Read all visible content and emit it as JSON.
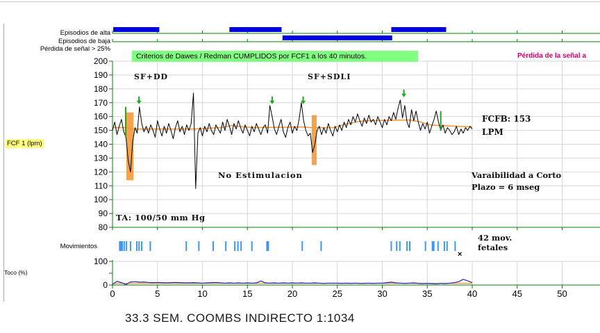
{
  "caption": "33.3 SEM. COOMBS INDIRECTO 1:1034",
  "header": {
    "rows": [
      {
        "label": "Episodios de alta",
        "bars_min": [
          [
            0.08,
            5.2
          ],
          [
            13.0,
            18.8
          ],
          [
            31.0,
            37.1
          ]
        ]
      },
      {
        "label": "Episodios de baja",
        "bars_min": [
          [
            18.9,
            31.1
          ]
        ]
      },
      {
        "label": "Pérdida de señal > 25%",
        "bars_min": []
      }
    ],
    "banner": "Criterios de Dawes / Redman CUMPLIDOS por FCF1 a los 40 minutos.",
    "signal_loss_text": "Pérdida de la señal a"
  },
  "axis_labels": {
    "fcf": "FCF 1 (lpm)",
    "movements": "Movimientos",
    "toco": "Toco (%)"
  },
  "annotations": {
    "sf_dd": "SF+DD",
    "sf_sdli": "SF+SDLI",
    "no_estimulacion": "No Estimulacion",
    "ta": "TA: 100/50 mm Hg",
    "fcfb_line1": "FCFB: 153",
    "fcfb_line2": "LPM",
    "stv_line1": "Varaibilidad a Corto",
    "stv_line2": "Plazo = 6 mseg",
    "mov_line1": "42 mov.",
    "mov_line2": "fetales",
    "x_marker": "×"
  },
  "colors": {
    "axis_green": "#008000",
    "grid": "#d6d6d6",
    "bar_blue": "#0000e0",
    "mov_blue": "#3d97f5",
    "banner_bg": "#80ff80",
    "magenta": "#d40070",
    "orange": "#f29a3a",
    "trace_black": "#000000",
    "toco_blue": "#2222cc",
    "marker_green": "#1fa81f",
    "yellow_bg": "#ffff80"
  },
  "chart_data": [
    {
      "id": "fhr",
      "type": "line",
      "title": "FCF 1 (lpm)",
      "ylabel": "FCF 1 (lpm)",
      "ylim": [
        80,
        200
      ],
      "y_ticks": [
        80,
        90,
        100,
        110,
        120,
        130,
        140,
        150,
        160,
        170,
        180,
        190,
        200
      ],
      "xlim_visible": [
        0,
        54
      ],
      "x_ticks": [
        0,
        5,
        10,
        15,
        20,
        25,
        30,
        35,
        40,
        45,
        50
      ],
      "grid": true,
      "baseline_bpm": 153,
      "short_term_variability_mseg": 6,
      "series": [
        {
          "name": "FCF1",
          "t0": 0,
          "dt": 0.25,
          "values": [
            150,
            156,
            147,
            153,
            158,
            149,
            145,
            128,
            120,
            142,
            152,
            148,
            167,
            155,
            149,
            153,
            148,
            154,
            150,
            145,
            157,
            151,
            146,
            153,
            148,
            155,
            150,
            144,
            152,
            157,
            149,
            153,
            147,
            154,
            150,
            155,
            177,
            108,
            148,
            152,
            146,
            153,
            149,
            155,
            150,
            147,
            154,
            151,
            148,
            156,
            150,
            158,
            153,
            147,
            155,
            151,
            157,
            152,
            148,
            154,
            150,
            146,
            153,
            149,
            155,
            151,
            147,
            152,
            154,
            148,
            168,
            160,
            151,
            147,
            153,
            158,
            149,
            145,
            152,
            156,
            148,
            153,
            150,
            158,
            170,
            157,
            150,
            146,
            148,
            134,
            140,
            150,
            153,
            147,
            152,
            148,
            155,
            150,
            146,
            153,
            149,
            154,
            150,
            156,
            152,
            158,
            154,
            160,
            156,
            162,
            157,
            153,
            159,
            155,
            161,
            156,
            158,
            154,
            160,
            156,
            152,
            158,
            154,
            160,
            157,
            163,
            158,
            166,
            172,
            159,
            168,
            156,
            152,
            165,
            157,
            164,
            156,
            150,
            155,
            151,
            156,
            148,
            153,
            158,
            164,
            156,
            150,
            154,
            148,
            152,
            150,
            147,
            149,
            153,
            147,
            151,
            148,
            152,
            150,
            153,
            151
          ]
        },
        {
          "name": "baseline",
          "points": [
            [
              0,
              152
            ],
            [
              1.4,
              152
            ],
            [
              2.4,
              151
            ],
            [
              4,
              151
            ],
            [
              9,
              151
            ],
            [
              12,
              152
            ],
            [
              13.2,
              153.5
            ],
            [
              14.5,
              152.5
            ],
            [
              16,
              152
            ],
            [
              21,
              152.5
            ],
            [
              22,
              152
            ],
            [
              24.5,
              152
            ],
            [
              26,
              154.5
            ],
            [
              27.5,
              156.5
            ],
            [
              28.5,
              157
            ],
            [
              33,
              157.5
            ],
            [
              34.3,
              156
            ],
            [
              35.3,
              154
            ],
            [
              36.3,
              153.5
            ],
            [
              40,
              152.5
            ]
          ]
        }
      ],
      "event_bars": [
        {
          "m1": 1.54,
          "m2": 2.35,
          "top": 163,
          "bottom": 114
        },
        {
          "m1": 22.15,
          "m2": 22.7,
          "top": 161,
          "bottom": 125
        }
      ],
      "accel_arrows": [
        {
          "m": 2.95,
          "tip": 169
        },
        {
          "m": 17.75,
          "tip": 169
        },
        {
          "m": 21.2,
          "tip": 169
        },
        {
          "m": 32.4,
          "tip": 174
        }
      ],
      "green_lines": [
        {
          "m": 1.47,
          "v1": 167,
          "v2": 145
        },
        {
          "m": 36.5,
          "v1": 164,
          "v2": 150
        }
      ]
    },
    {
      "id": "movements",
      "type": "event-ticks",
      "label": "Movimientos",
      "total": 42,
      "ticks_min": [
        {
          "m": 0.8
        },
        {
          "m": 1.0,
          "w": 2
        },
        {
          "m": 1.3
        },
        {
          "m": 1.55
        },
        {
          "m": 2.0
        },
        {
          "m": 2.7
        },
        {
          "m": 2.95
        },
        {
          "m": 3.25
        },
        {
          "m": 4.2
        },
        {
          "m": 8.2
        },
        {
          "m": 9.6
        },
        {
          "m": 11.2
        },
        {
          "m": 12.6
        },
        {
          "m": 13.6
        },
        {
          "m": 13.95
        },
        {
          "m": 14.3
        },
        {
          "m": 15.5
        },
        {
          "m": 17.25,
          "w": 2
        },
        {
          "m": 21.1
        },
        {
          "m": 23.2
        },
        {
          "m": 31.0
        },
        {
          "m": 31.6
        },
        {
          "m": 31.95
        },
        {
          "m": 32.75
        },
        {
          "m": 33.05
        },
        {
          "m": 34.8
        },
        {
          "m": 35.65,
          "w": 2
        },
        {
          "m": 36.2
        },
        {
          "m": 36.9
        },
        {
          "m": 37.2
        },
        {
          "m": 38.1
        }
      ],
      "x_marker_min": 38.6
    },
    {
      "id": "toco",
      "type": "line",
      "title": "Toco (%)",
      "ylim": [
        0,
        100
      ],
      "y_ticks": [
        0,
        50,
        100
      ],
      "y_tick_labels_shown": [
        "0",
        "100"
      ],
      "x_ticks": [
        0,
        5,
        10,
        15,
        20,
        25,
        30,
        35,
        40,
        45,
        50
      ],
      "series": [
        {
          "name": "Toco",
          "t0": 0,
          "dt": 0.5,
          "values": [
            3,
            16,
            10,
            2,
            13,
            14,
            12,
            13,
            11,
            10,
            11,
            10,
            9,
            10,
            11,
            10,
            9,
            9,
            10,
            9,
            8,
            9,
            10,
            11,
            9,
            8,
            9,
            8,
            9,
            8,
            9,
            8,
            9,
            17,
            9,
            8,
            9,
            8,
            9,
            8,
            9,
            8,
            9,
            8,
            8,
            9,
            8,
            7,
            8,
            8,
            8,
            7,
            8,
            7,
            8,
            7,
            7,
            8,
            7,
            8,
            8,
            10,
            12,
            9,
            8,
            7,
            8,
            9,
            7,
            6,
            7,
            6,
            5,
            7,
            6,
            8,
            10,
            14,
            24,
            18,
            10
          ]
        },
        {
          "name": "baseline",
          "points": [
            [
              0,
              7
            ],
            [
              40,
              7
            ]
          ]
        }
      ]
    }
  ]
}
